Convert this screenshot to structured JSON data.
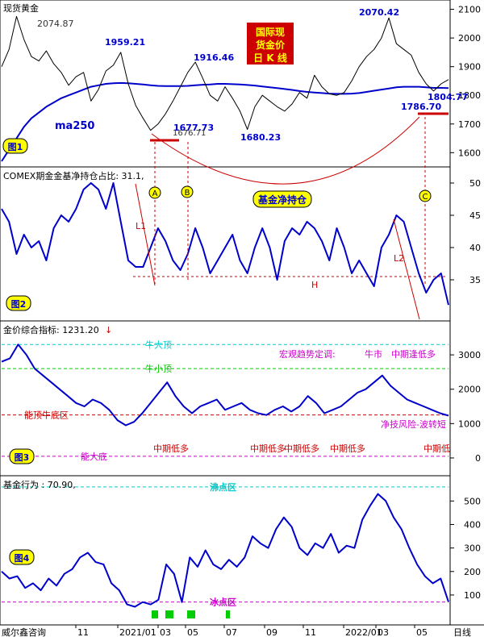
{
  "colors": {
    "price": "#000000",
    "ma": "#0000cc",
    "indicator": "#0000cc",
    "accent": "#cc0000",
    "cyan": "#00cccc",
    "green": "#00cc00",
    "magenta": "#cc00cc",
    "yellow_badge": "#ffff00",
    "axis_text": "#000000"
  },
  "footer": {
    "source": "威尔鑫咨询",
    "period": "日线"
  },
  "x_axis": {
    "labels": [
      "11",
      "2021/01",
      "03",
      "05",
      "07",
      "09",
      "11",
      "2022/01",
      "03",
      "05"
    ]
  },
  "chart_data": [
    {
      "type": "line",
      "panel_badge": "图1",
      "title_left": "现货黄金",
      "title_box": [
        "国际现",
        "货金价",
        "日 K 线"
      ],
      "ma_label": "ma250",
      "y_ticks": [
        1600,
        1700,
        1800,
        1900,
        2000,
        2100
      ],
      "ylim": [
        1570,
        2110
      ],
      "annotations": [
        "2074.87",
        "1959.21",
        "1916.46",
        "2070.42",
        "1677.73",
        "1676.71",
        "1680.23",
        "1786.70",
        "1804.77"
      ],
      "series": [
        {
          "values": [
            1900,
            1960,
            2075,
            1995,
            1935,
            1920,
            1955,
            1910,
            1880,
            1835,
            1865,
            1880,
            1780,
            1820,
            1885,
            1905,
            1950,
            1840,
            1765,
            1720,
            1678,
            1700,
            1735,
            1780,
            1830,
            1880,
            1916,
            1860,
            1800,
            1780,
            1830,
            1790,
            1745,
            1681,
            1760,
            1800,
            1780,
            1760,
            1745,
            1770,
            1810,
            1790,
            1870,
            1830,
            1805,
            1800,
            1810,
            1850,
            1900,
            1935,
            1960,
            2000,
            2070,
            1980,
            1960,
            1940,
            1880,
            1840,
            1815,
            1840,
            1855
          ]
        },
        {
          "values": [
            1570,
            1610,
            1650,
            1690,
            1720,
            1740,
            1760,
            1775,
            1790,
            1800,
            1810,
            1820,
            1830,
            1835,
            1840,
            1842,
            1843,
            1842,
            1840,
            1838,
            1835,
            1833,
            1832,
            1832,
            1832,
            1833,
            1835,
            1837,
            1838,
            1840,
            1840,
            1839,
            1838,
            1836,
            1834,
            1831,
            1828,
            1825,
            1822,
            1819,
            1815,
            1812,
            1810,
            1808,
            1806,
            1805,
            1805,
            1806,
            1808,
            1812,
            1816,
            1820,
            1824,
            1828,
            1830,
            1830,
            1830,
            1828,
            1826,
            1826,
            1825
          ]
        }
      ]
    },
    {
      "type": "line",
      "panel_badge": "图2",
      "title": "COMEX期金金基净持仓占比: 31.1,",
      "callout": "基金净持仓",
      "markers": [
        "A",
        "B",
        "C",
        "L1",
        "L2",
        "H"
      ],
      "y_ticks": [
        35.0,
        40.0,
        45.0,
        50.0
      ],
      "ylim": [
        29,
        51.5
      ],
      "series": [
        {
          "values": [
            46,
            44,
            39,
            42,
            40,
            41,
            38,
            43,
            45,
            44,
            46,
            49,
            50,
            49,
            46,
            50,
            44,
            38,
            37,
            37,
            40,
            43,
            41,
            38,
            36.5,
            39,
            43,
            40,
            36,
            38,
            40,
            42,
            38,
            36,
            40,
            43,
            40,
            35,
            41,
            43,
            42,
            44,
            43,
            41,
            38,
            43,
            40,
            36,
            38,
            36,
            34,
            40,
            42,
            45,
            44,
            40,
            36,
            33,
            35,
            36,
            31.1
          ]
        }
      ]
    },
    {
      "type": "line",
      "panel_badge": "图3",
      "title": "金价综合指标: 1231.20",
      "y_ticks": [
        0,
        1000,
        2000,
        3000
      ],
      "ylim": [
        -400,
        3800
      ],
      "reference_lines": [
        {
          "label": "牛大顶",
          "value": 3300
        },
        {
          "label": "牛小顶",
          "value": 2600
        },
        {
          "label": "能顶牛底区",
          "value": 1250
        },
        {
          "label": "能大底",
          "value": 50
        }
      ],
      "annotations": [
        "宏观趋势定调:",
        "牛市",
        "中期逢低多",
        "净技风险-波转短",
        "中期低多",
        "中期低多",
        "中期低多",
        "中期低多",
        "中期低"
      ],
      "series": [
        {
          "values": [
            2800,
            2900,
            3300,
            3000,
            2600,
            2400,
            2200,
            2000,
            1800,
            1600,
            1500,
            1700,
            1600,
            1400,
            1100,
            950,
            1050,
            1300,
            1600,
            1900,
            2200,
            1800,
            1500,
            1300,
            1500,
            1600,
            1700,
            1400,
            1500,
            1600,
            1400,
            1300,
            1250,
            1400,
            1500,
            1350,
            1500,
            1800,
            1600,
            1300,
            1400,
            1500,
            1700,
            1900,
            2000,
            2200,
            2400,
            2100,
            1900,
            1700,
            1600,
            1500,
            1400,
            1300,
            1231
          ]
        }
      ]
    },
    {
      "type": "line",
      "panel_badge": "图4",
      "title": "基金行为 : 70.90,",
      "y_ticks": [
        100,
        200,
        300,
        400,
        500
      ],
      "ylim": [
        -10,
        580
      ],
      "reference_lines": [
        {
          "label": "沸点区",
          "value": 560
        },
        {
          "label": "冰点区",
          "value": 70
        }
      ],
      "series": [
        {
          "values": [
            200,
            170,
            180,
            130,
            150,
            120,
            170,
            140,
            190,
            210,
            260,
            280,
            240,
            230,
            150,
            120,
            60,
            50,
            70,
            60,
            80,
            230,
            190,
            70,
            260,
            220,
            290,
            230,
            210,
            250,
            220,
            260,
            350,
            320,
            300,
            380,
            430,
            390,
            300,
            270,
            320,
            300,
            360,
            280,
            310,
            300,
            420,
            480,
            530,
            500,
            430,
            380,
            300,
            230,
            180,
            150,
            170,
            71
          ]
        }
      ]
    }
  ]
}
